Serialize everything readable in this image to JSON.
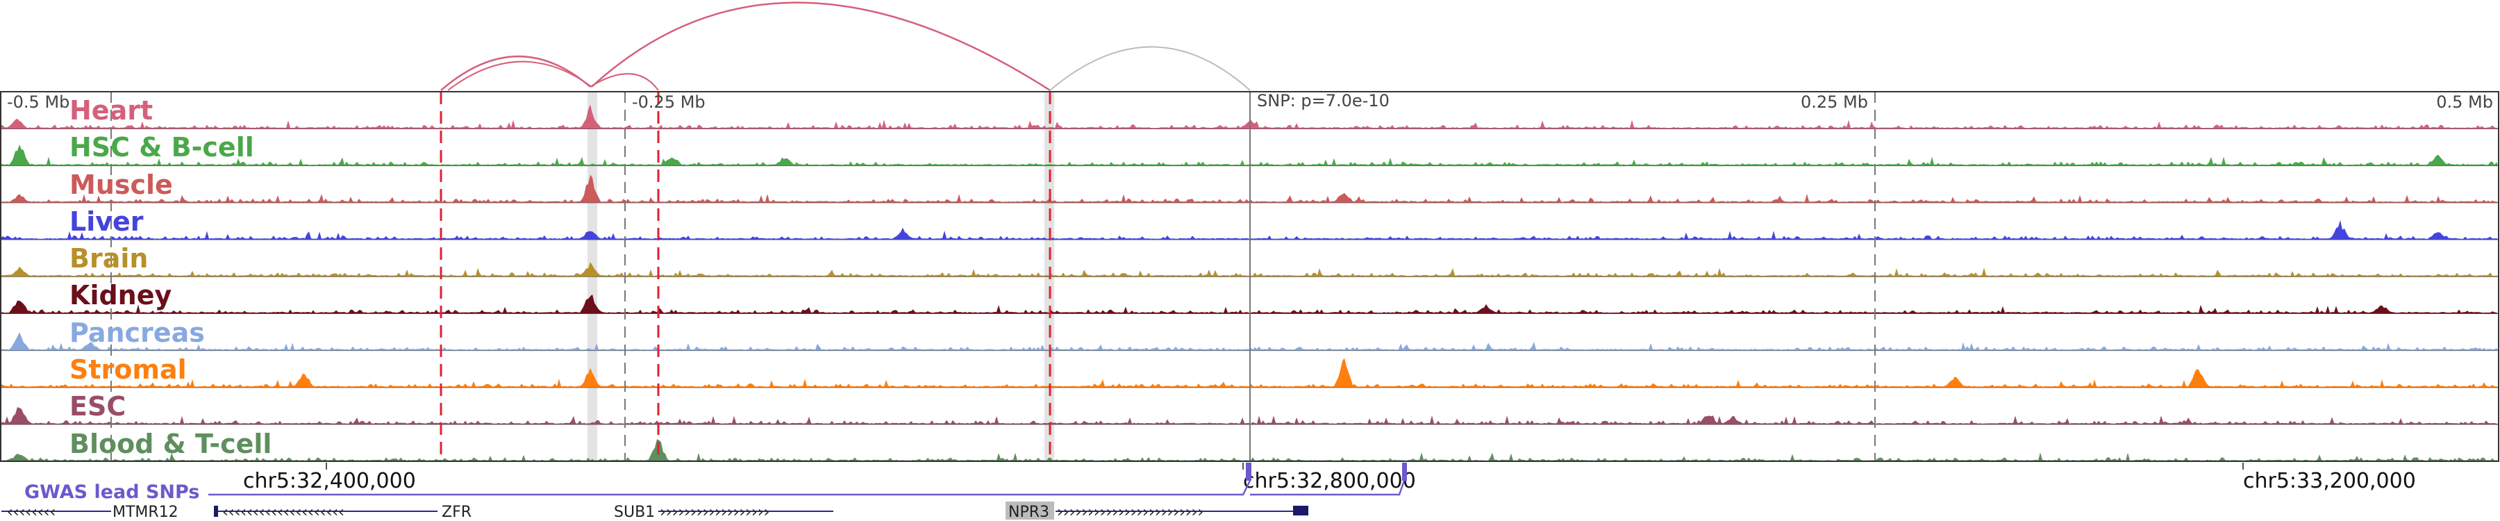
{
  "scale_labels": [
    "-0.5 Mb",
    "-0.25 Mb",
    "SNP: p=7.0e-10",
    "0.25 Mb",
    "0.5 Mb"
  ],
  "tracks": [
    {
      "name": "Heart",
      "color": "#d4607a"
    },
    {
      "name": "HSC & B-cell",
      "color": "#4aa84a"
    },
    {
      "name": "Muscle",
      "color": "#cc5a5a"
    },
    {
      "name": "Liver",
      "color": "#4444dd"
    },
    {
      "name": "Brain",
      "color": "#b8902a"
    },
    {
      "name": "Kidney",
      "color": "#6b0f1a"
    },
    {
      "name": "Pancreas",
      "color": "#88a8e0"
    },
    {
      "name": "Stromal",
      "color": "#ff7f0e"
    },
    {
      "name": "ESC",
      "color": "#9a4d66"
    },
    {
      "name": "Blood & T-cell",
      "color": "#5e8f5e"
    }
  ],
  "gwas_track_label": "GWAS lead SNPs",
  "gwas_color": "#6a5acd",
  "coordinates": [
    "chr5:32,400,000",
    "chr5:32,800,000",
    "chr5:33,200,000"
  ],
  "genes": [
    {
      "name": "MTMR12",
      "strand": "-"
    },
    {
      "name": "ZFR",
      "strand": "-"
    },
    {
      "name": "SUB1",
      "strand": "+"
    },
    {
      "name": "NPR3",
      "strand": "+"
    }
  ],
  "colors": {
    "loop_active": "#d4607a",
    "loop_inactive": "#bbbbbb",
    "highlight": "#e3e3e3",
    "enhancer_line": "#dd2233"
  }
}
